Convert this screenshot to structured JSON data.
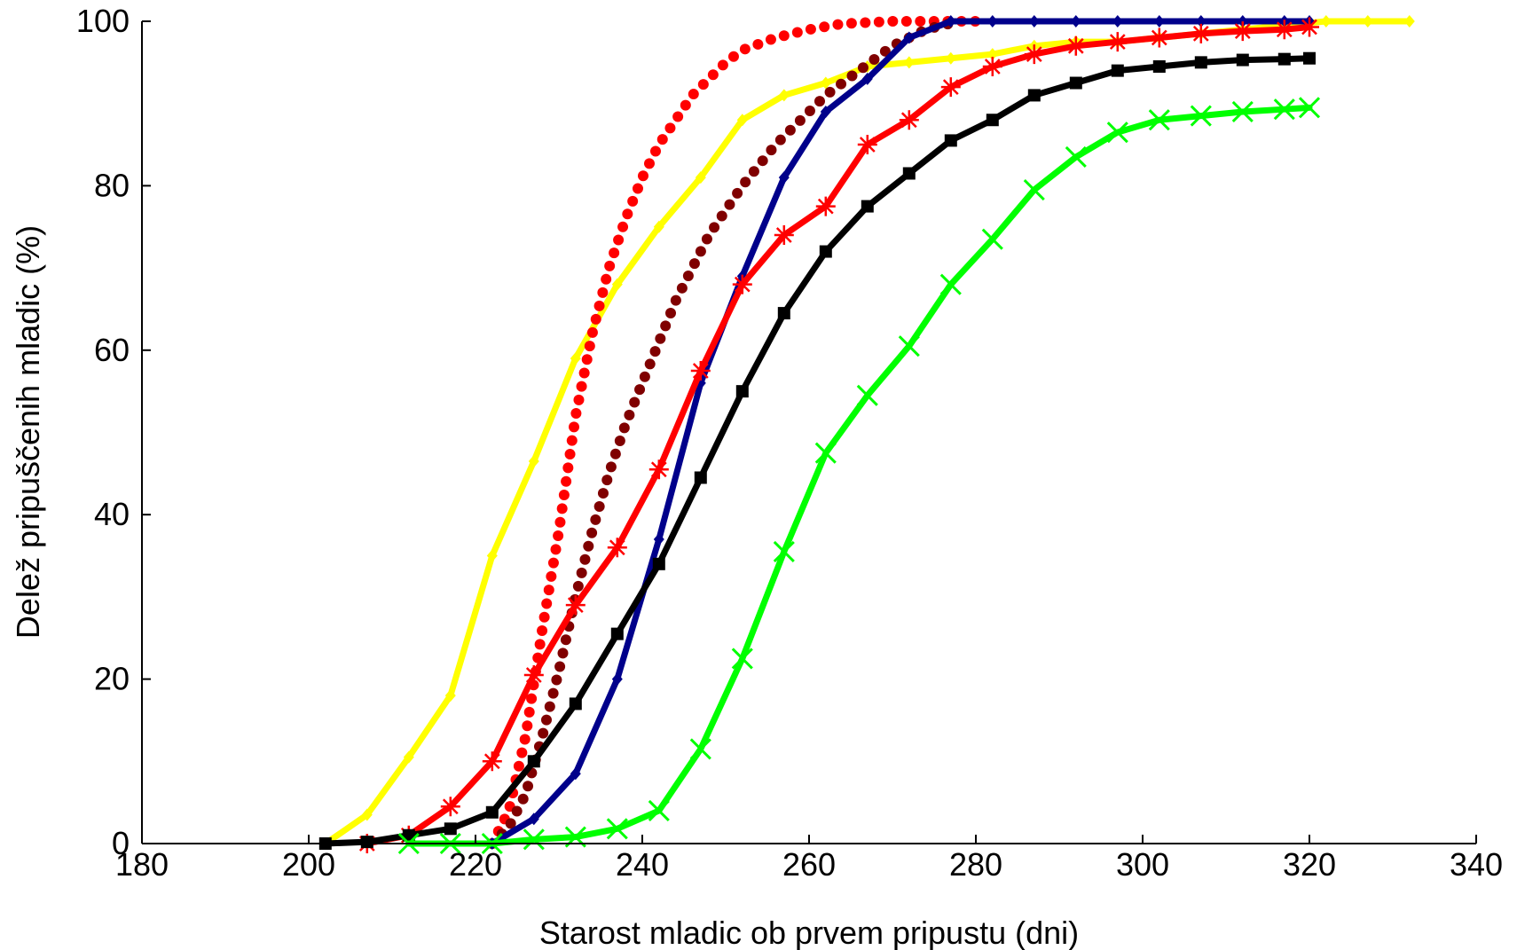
{
  "chart_data": {
    "type": "line",
    "title": "",
    "xlabel": "Starost mladic ob prvem pripustu (dni)",
    "ylabel": "Delež pripuščenih mladic (%)",
    "xlim": [
      180,
      340
    ],
    "ylim": [
      0,
      100
    ],
    "xticks": [
      180,
      200,
      220,
      240,
      260,
      280,
      300,
      320,
      340
    ],
    "yticks": [
      0,
      20,
      40,
      60,
      80,
      100
    ],
    "grid": false,
    "legend": "none",
    "series": [
      {
        "color": "#ffff00",
        "style": "solid",
        "marker": "diamond",
        "x": [
          202,
          207,
          212,
          217,
          222,
          227,
          232,
          237,
          242,
          247,
          252,
          257,
          262,
          267,
          272,
          277,
          282,
          287,
          292,
          297,
          302,
          307,
          312,
          317,
          322,
          327,
          332
        ],
        "y": [
          0,
          3.5,
          10.5,
          18,
          35,
          46.5,
          59,
          68,
          75,
          81,
          88,
          91,
          92.5,
          94.5,
          95,
          95.5,
          96,
          97,
          97.5,
          97.5,
          98,
          98.5,
          99,
          99.5,
          100,
          100,
          100
        ]
      },
      {
        "color": "#ff0000",
        "style": "dotted",
        "marker": "none",
        "x": [
          222,
          224,
          226,
          228,
          230,
          232,
          234,
          236,
          238,
          240,
          242,
          244,
          246,
          248,
          250,
          252,
          256,
          260,
          264,
          270,
          280
        ],
        "y": [
          0,
          4,
          13,
          26,
          38,
          52,
          62,
          70,
          76,
          81,
          85,
          88,
          91,
          93,
          95,
          96.5,
          98,
          99,
          99.7,
          100,
          100
        ]
      },
      {
        "color": "#800000",
        "style": "dotted",
        "marker": "none",
        "x": [
          222,
          224,
          226,
          228,
          230,
          232,
          234,
          236,
          238,
          240,
          242,
          244,
          246,
          248,
          250,
          252,
          254,
          256,
          258,
          260,
          262,
          264,
          266,
          268,
          270,
          272,
          274,
          276,
          278
        ],
        "y": [
          0,
          2,
          6,
          13,
          21,
          30,
          38,
          45,
          51,
          56,
          61,
          66,
          70,
          74,
          77,
          80,
          82.5,
          85,
          87,
          89,
          91,
          92.5,
          94,
          95.5,
          97,
          98,
          99,
          99.5,
          100
        ]
      },
      {
        "color": "#00008b",
        "style": "solid",
        "marker": "diamond",
        "x": [
          222,
          227,
          232,
          237,
          242,
          247,
          252,
          257,
          262,
          267,
          272,
          277,
          282,
          287,
          292,
          297,
          302,
          307,
          312,
          317,
          320
        ],
        "y": [
          0,
          3,
          8.5,
          20,
          37,
          56,
          69,
          81,
          89,
          93,
          98,
          100,
          100,
          100,
          100,
          100,
          100,
          100,
          100,
          100,
          100
        ]
      },
      {
        "color": "#ff0000",
        "style": "solid",
        "marker": "star",
        "x": [
          207,
          212,
          217,
          222,
          227,
          232,
          237,
          242,
          247,
          252,
          257,
          262,
          267,
          272,
          277,
          282,
          287,
          292,
          297,
          302,
          307,
          312,
          317,
          320
        ],
        "y": [
          0,
          1,
          4.5,
          10,
          20.5,
          29,
          36,
          45.5,
          57.5,
          68,
          74,
          77.5,
          85,
          88,
          92,
          94.5,
          96,
          97,
          97.5,
          98,
          98.5,
          98.8,
          99,
          99.3
        ]
      },
      {
        "color": "#000000",
        "style": "solid",
        "marker": "square",
        "x": [
          202,
          207,
          212,
          217,
          222,
          227,
          232,
          237,
          242,
          247,
          252,
          257,
          262,
          267,
          272,
          277,
          282,
          287,
          292,
          297,
          302,
          307,
          312,
          317,
          320
        ],
        "y": [
          0,
          0.2,
          1,
          1.8,
          3.8,
          10,
          17,
          25.5,
          34,
          44.5,
          55,
          64.5,
          72,
          77.5,
          81.5,
          85.5,
          88,
          91,
          92.5,
          94,
          94.5,
          95,
          95.3,
          95.4,
          95.5
        ]
      },
      {
        "color": "#00ff00",
        "style": "solid",
        "marker": "x",
        "x": [
          212,
          217,
          222,
          227,
          232,
          237,
          242,
          247,
          252,
          257,
          262,
          267,
          272,
          277,
          282,
          287,
          292,
          297,
          302,
          307,
          312,
          317,
          320
        ],
        "y": [
          0,
          0,
          0,
          0.5,
          0.8,
          1.8,
          4,
          11.5,
          22.5,
          35.5,
          47.5,
          54.5,
          60.5,
          68,
          73.5,
          79.5,
          83.5,
          86.5,
          88,
          88.5,
          89,
          89.3,
          89.5
        ]
      }
    ]
  }
}
